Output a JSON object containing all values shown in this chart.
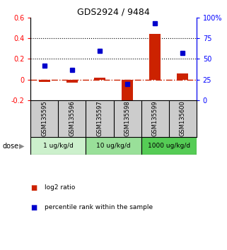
{
  "title": "GDS2924 / 9484",
  "samples": [
    "GSM135595",
    "GSM135596",
    "GSM135597",
    "GSM135598",
    "GSM135599",
    "GSM135600"
  ],
  "log2_ratio": [
    -0.02,
    -0.03,
    0.02,
    -0.22,
    0.44,
    0.06
  ],
  "percentile": [
    42,
    37,
    60,
    20,
    93,
    57
  ],
  "ylim_left": [
    -0.2,
    0.6
  ],
  "ylim_right": [
    0,
    100
  ],
  "yticks_left": [
    -0.2,
    0.0,
    0.2,
    0.4,
    0.6
  ],
  "yticks_right": [
    0,
    25,
    50,
    75,
    100
  ],
  "ytick_labels_left": [
    "-0.2",
    "0",
    "0.2",
    "0.4",
    "0.6"
  ],
  "ytick_labels_right": [
    "0",
    "25",
    "50",
    "75",
    "100%"
  ],
  "dose_groups": [
    {
      "label": "1 ug/kg/d",
      "samples": [
        0,
        1
      ],
      "color": "#ccf0cc"
    },
    {
      "label": "10 ug/kg/d",
      "samples": [
        2,
        3
      ],
      "color": "#99e099"
    },
    {
      "label": "1000 ug/kg/d",
      "samples": [
        4,
        5
      ],
      "color": "#55cc55"
    }
  ],
  "bar_color": "#cc2200",
  "square_color": "#0000cc",
  "dash_dot_color": "#cc2200",
  "dotted_line_color": "#000000",
  "background_plot": "#ffffff",
  "background_sample": "#cccccc",
  "dose_label": "dose",
  "legend_red": "log2 ratio",
  "legend_blue": "percentile rank within the sample"
}
